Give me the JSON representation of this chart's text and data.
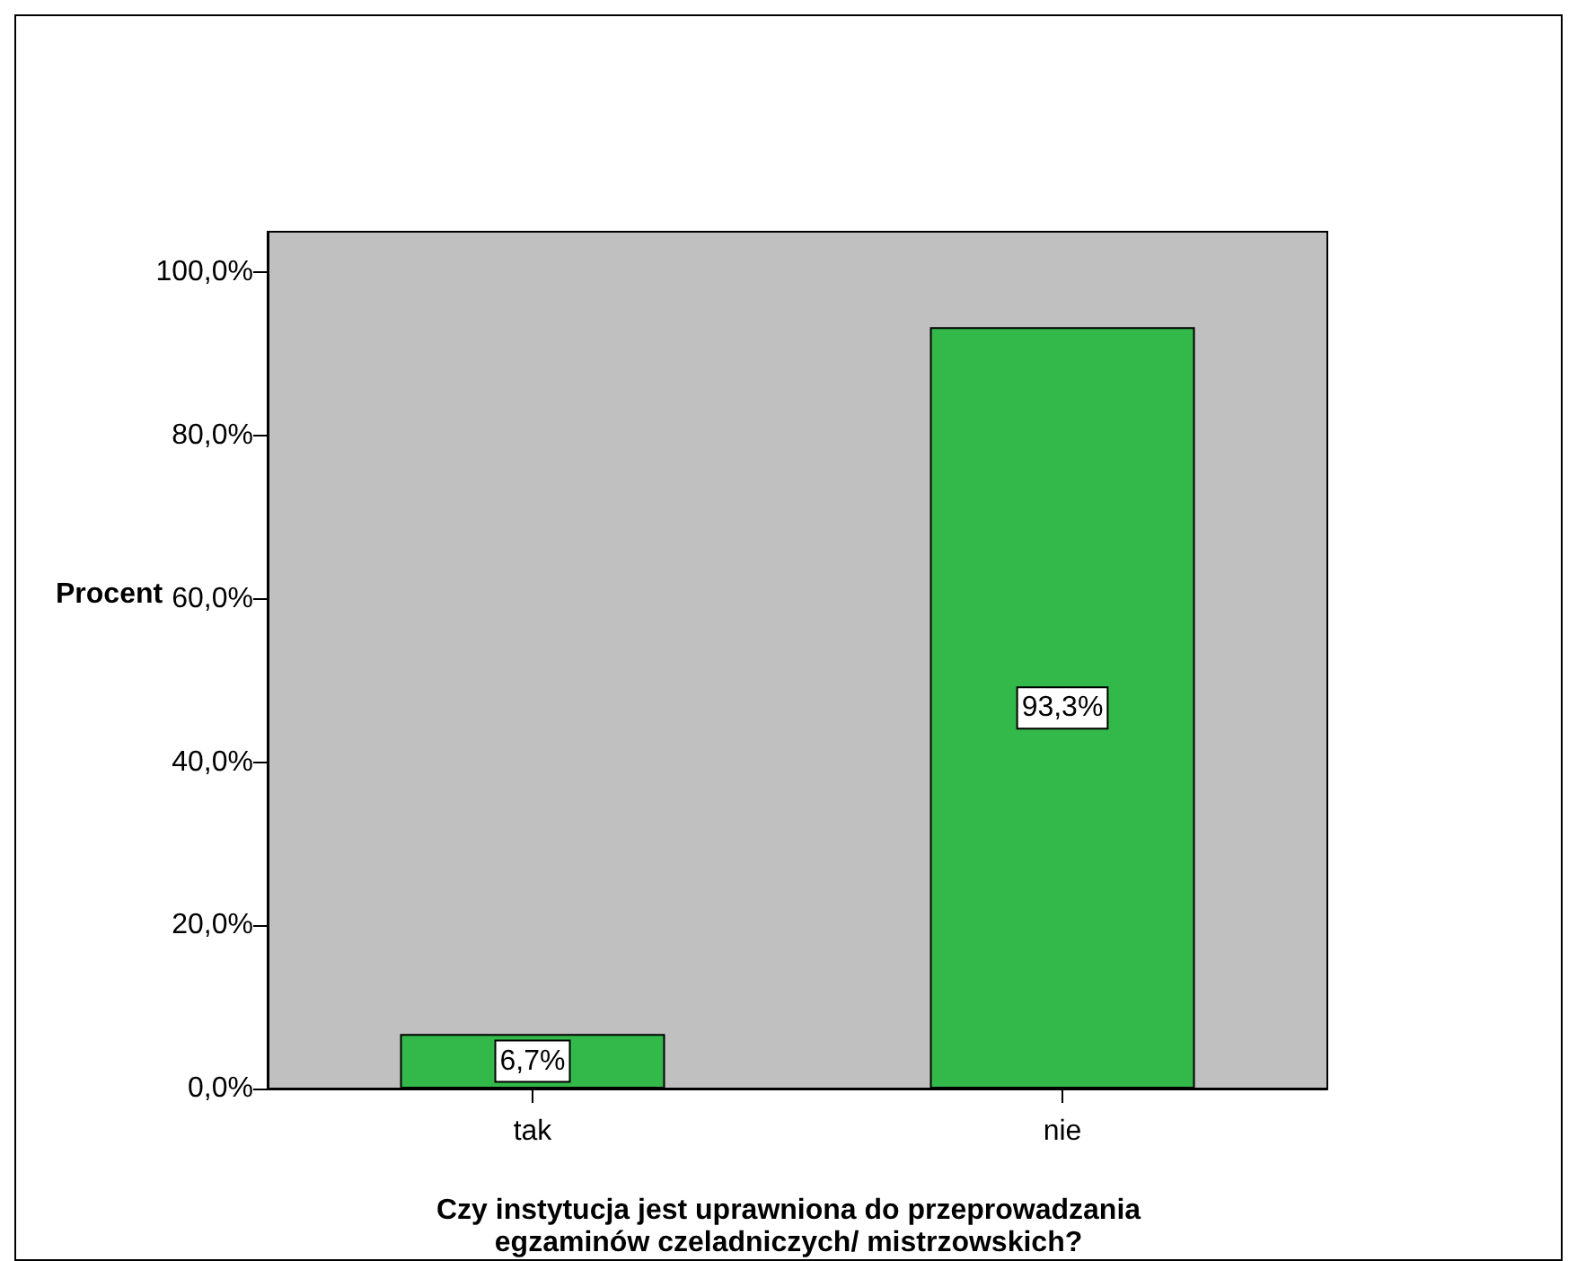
{
  "chart_data": {
    "type": "bar",
    "xlabel": "Czy instytucja jest uprawniona do przeprowadzania\negzaminów czeladniczych/ mistrzowskich?",
    "ylabel": "Procent",
    "categories": [
      "tak",
      "nie"
    ],
    "values": [
      6.7,
      93.3
    ],
    "value_labels": [
      "6,7%",
      "93,3%"
    ],
    "color": "#33b84a",
    "ylim": [
      0,
      105
    ],
    "yticks": [
      {
        "value": 0,
        "label": "0,0%"
      },
      {
        "value": 20,
        "label": "20,0%"
      },
      {
        "value": 40,
        "label": "40,0%"
      },
      {
        "value": 60,
        "label": "60,0%"
      },
      {
        "value": 80,
        "label": "80,0%"
      },
      {
        "value": 100,
        "label": "100,0%"
      }
    ],
    "grid": false
  }
}
